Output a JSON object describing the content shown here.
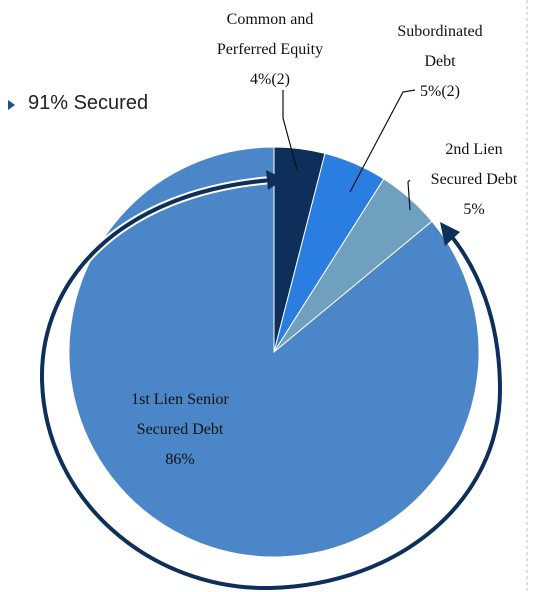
{
  "chart_data": {
    "type": "pie",
    "categories": [
      "Common and Perferred Equity",
      "Subordinated Debt",
      "2nd Lien Secured Debt",
      "1st Lien Senior Secured Debt"
    ],
    "values": [
      4,
      5,
      5,
      86
    ],
    "value_labels": [
      "4%(2)",
      "5%(2)",
      "5%",
      "86%"
    ],
    "colors": [
      "#0d2f5a",
      "#2a7de1",
      "#6fa0c0",
      "#4a86c8"
    ],
    "annotation": "91% Secured"
  }
}
